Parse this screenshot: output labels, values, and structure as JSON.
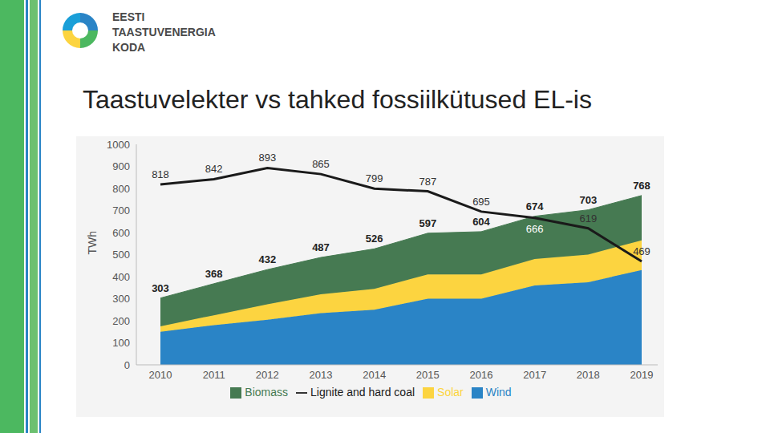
{
  "logo": [
    "EESTI",
    "TAASTUVENERGIA",
    "KODA"
  ],
  "chart_data": {
    "type": "area",
    "title": "Taastuvelekter vs tahked fossiilkütused EL-is",
    "y_label": "TWh",
    "stacked": true,
    "grid": false,
    "legend": "bottom",
    "categories": [
      "2010",
      "2011",
      "2012",
      "2013",
      "2014",
      "2015",
      "2016",
      "2017",
      "2018",
      "2019"
    ],
    "series": [
      {
        "name": "Wind",
        "type": "area",
        "color": "#2a84c6",
        "values": [
          150,
          180,
          205,
          235,
          250,
          300,
          300,
          360,
          375,
          430
        ]
      },
      {
        "name": "Solar",
        "type": "area",
        "color": "#fcd440",
        "values": [
          25,
          45,
          70,
          85,
          95,
          110,
          110,
          120,
          125,
          135
        ]
      },
      {
        "name": "Biomass",
        "type": "area",
        "color": "#467a52",
        "values": [
          128,
          143,
          157,
          167,
          181,
          187,
          194,
          194,
          203,
          203
        ]
      },
      {
        "name": "Lignite and hard coal",
        "type": "line",
        "color": "#1a1a1a",
        "data_labels": true,
        "values": [
          818,
          842,
          893,
          865,
          799,
          787,
          695,
          666,
          619,
          469
        ]
      }
    ],
    "totals": [
      303,
      368,
      432,
      487,
      526,
      597,
      604,
      674,
      703,
      768
    ],
    "ylim": [
      0,
      1000
    ],
    "yticks": [
      0,
      100,
      200,
      300,
      400,
      500,
      600,
      700,
      800,
      900,
      1000
    ]
  }
}
